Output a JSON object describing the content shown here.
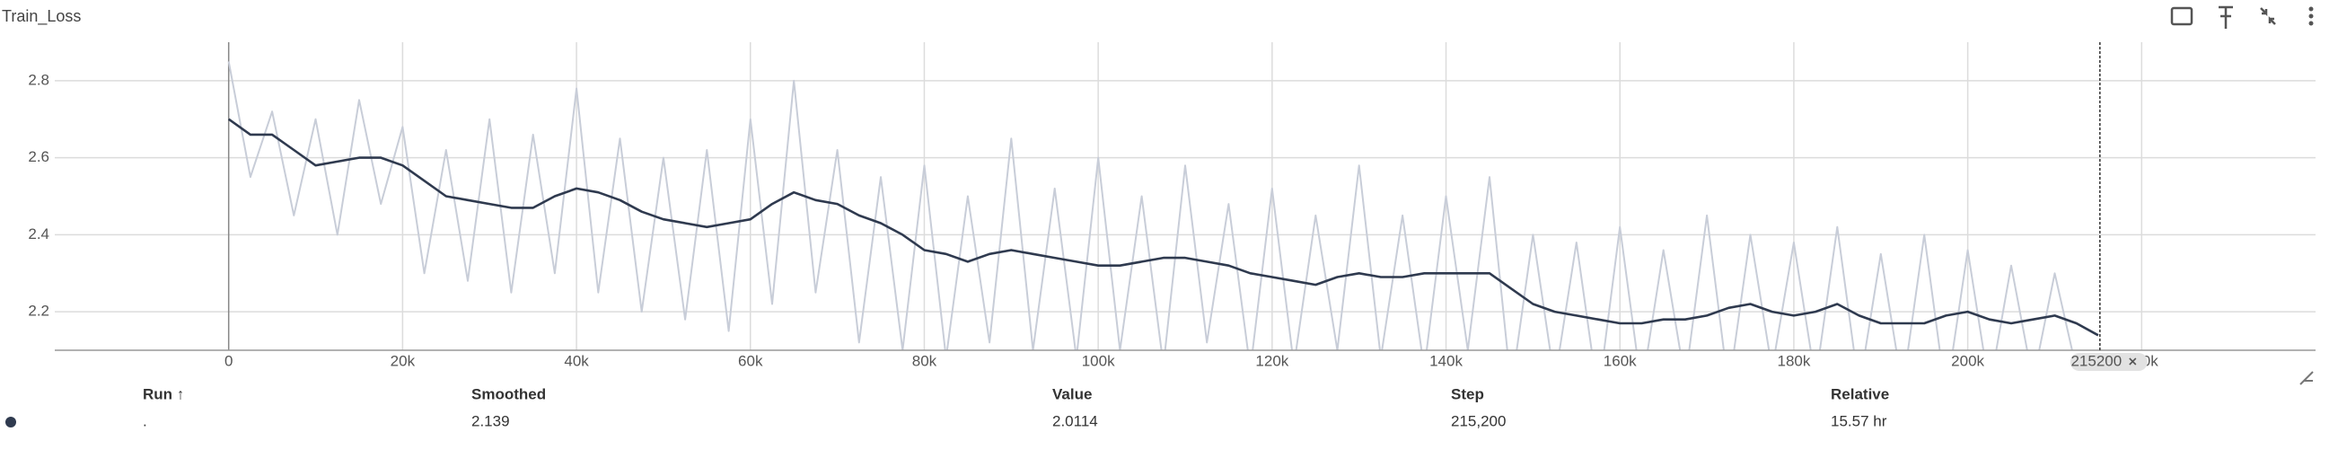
{
  "chart_data": {
    "type": "line",
    "title": "Train_Loss",
    "x": [
      0,
      2500,
      5000,
      7500,
      10000,
      12500,
      15000,
      17500,
      20000,
      22500,
      25000,
      27500,
      30000,
      32500,
      35000,
      37500,
      40000,
      42500,
      45000,
      47500,
      50000,
      52500,
      55000,
      57500,
      60000,
      62500,
      65000,
      67500,
      70000,
      72500,
      75000,
      77500,
      80000,
      82500,
      85000,
      87500,
      90000,
      92500,
      95000,
      97500,
      100000,
      102500,
      105000,
      107500,
      110000,
      112500,
      115000,
      117500,
      120000,
      122500,
      125000,
      127500,
      130000,
      132500,
      135000,
      137500,
      140000,
      142500,
      145000,
      147500,
      150000,
      152500,
      155000,
      157500,
      160000,
      162500,
      165000,
      167500,
      170000,
      172500,
      175000,
      177500,
      180000,
      182500,
      185000,
      187500,
      190000,
      192500,
      195000,
      197500,
      200000,
      202500,
      205000,
      207500,
      210000,
      212500,
      215000
    ],
    "series": [
      {
        "name": "Value",
        "color": "#c8cdd8",
        "values": [
          2.85,
          2.55,
          2.72,
          2.45,
          2.7,
          2.4,
          2.75,
          2.48,
          2.68,
          2.3,
          2.62,
          2.28,
          2.7,
          2.25,
          2.66,
          2.3,
          2.78,
          2.25,
          2.65,
          2.2,
          2.6,
          2.18,
          2.62,
          2.15,
          2.7,
          2.22,
          2.8,
          2.25,
          2.62,
          2.12,
          2.55,
          2.1,
          2.58,
          2.08,
          2.5,
          2.12,
          2.65,
          2.1,
          2.52,
          2.08,
          2.6,
          2.1,
          2.5,
          2.06,
          2.58,
          2.12,
          2.48,
          2.05,
          2.52,
          2.06,
          2.45,
          2.1,
          2.58,
          2.08,
          2.45,
          2.05,
          2.5,
          2.1,
          2.55,
          2.0,
          2.4,
          2.02,
          2.38,
          1.98,
          2.42,
          2.0,
          2.36,
          2.02,
          2.45,
          2.0,
          2.4,
          2.05,
          2.38,
          2.02,
          2.42,
          2.0,
          2.35,
          2.0,
          2.4,
          1.98,
          2.36,
          2.0,
          2.32,
          2.02,
          2.3,
          2.05,
          2.0114
        ]
      },
      {
        "name": "Smoothed",
        "color": "#2f3a4f",
        "values": [
          2.7,
          2.66,
          2.66,
          2.62,
          2.58,
          2.59,
          2.6,
          2.6,
          2.58,
          2.54,
          2.5,
          2.49,
          2.48,
          2.47,
          2.47,
          2.5,
          2.52,
          2.51,
          2.49,
          2.46,
          2.44,
          2.43,
          2.42,
          2.43,
          2.44,
          2.48,
          2.51,
          2.49,
          2.48,
          2.45,
          2.43,
          2.4,
          2.36,
          2.35,
          2.33,
          2.35,
          2.36,
          2.35,
          2.34,
          2.33,
          2.32,
          2.32,
          2.33,
          2.34,
          2.34,
          2.33,
          2.32,
          2.3,
          2.29,
          2.28,
          2.27,
          2.29,
          2.3,
          2.29,
          2.29,
          2.3,
          2.3,
          2.3,
          2.3,
          2.26,
          2.22,
          2.2,
          2.19,
          2.18,
          2.17,
          2.17,
          2.18,
          2.18,
          2.19,
          2.21,
          2.22,
          2.2,
          2.19,
          2.2,
          2.22,
          2.19,
          2.17,
          2.17,
          2.17,
          2.19,
          2.2,
          2.18,
          2.17,
          2.18,
          2.19,
          2.17,
          2.139
        ]
      }
    ],
    "xlim": [
      -20000,
      240000
    ],
    "ylim": [
      2.1,
      2.9
    ],
    "xticks": [
      0,
      {
        "value": 20000,
        "label": "20k"
      },
      {
        "value": 40000,
        "label": "40k"
      },
      {
        "value": 60000,
        "label": "60k"
      },
      {
        "value": 80000,
        "label": "80k"
      },
      {
        "value": 100000,
        "label": "100k"
      },
      {
        "value": 120000,
        "label": "120k"
      },
      {
        "value": 140000,
        "label": "140k"
      },
      {
        "value": 160000,
        "label": "160k"
      },
      {
        "value": 180000,
        "label": "180k"
      },
      {
        "value": 200000,
        "label": "200k"
      },
      {
        "value": 220000,
        "label": "220k"
      }
    ],
    "yticks": [
      2.2,
      2.4,
      2.6,
      2.8
    ],
    "grid": true,
    "cursor": 215200
  },
  "table": {
    "headers": [
      "Run ↑",
      "Smoothed",
      "Value",
      "Step",
      "Relative"
    ],
    "rows": [
      [
        ".",
        "2.139",
        "2.0114",
        "215,200",
        "15.57 hr"
      ]
    ]
  }
}
